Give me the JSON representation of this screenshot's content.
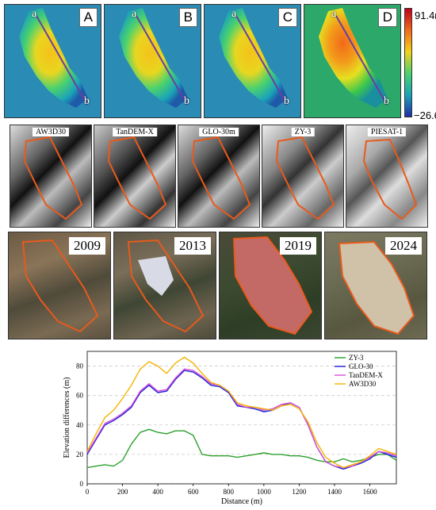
{
  "dem_panels": [
    {
      "tag": "A",
      "point_a": "a",
      "point_b": "b"
    },
    {
      "tag": "B",
      "point_a": "a",
      "point_b": "b"
    },
    {
      "tag": "C",
      "point_a": "a",
      "point_b": "b"
    },
    {
      "tag": "D",
      "point_a": "a",
      "point_b": "b"
    }
  ],
  "colorbar": {
    "max": "91.4m",
    "min": "−26.6m"
  },
  "hillshade_panels": [
    "AW3D30",
    "TanDEM-X",
    "GLO-30m",
    "ZY-3",
    "PIESAT-1"
  ],
  "satellite_panels": [
    "2009",
    "2013",
    "2019",
    "2024"
  ],
  "chart_data": {
    "type": "line",
    "xlabel": "Distance (m)",
    "ylabel": "Elevation differences (m)",
    "xlim": [
      0,
      1750
    ],
    "ylim": [
      0,
      90
    ],
    "xticks": [
      "0",
      "200",
      "400",
      "600",
      "800",
      "1000",
      "1200",
      "1400",
      "1600"
    ],
    "yticks": [
      "0",
      "20",
      "40",
      "60",
      "80"
    ],
    "grid": true,
    "legend_position": "top-right",
    "x": [
      0,
      50,
      100,
      150,
      200,
      250,
      300,
      350,
      400,
      450,
      500,
      550,
      600,
      650,
      700,
      750,
      800,
      850,
      900,
      950,
      1000,
      1050,
      1100,
      1150,
      1200,
      1250,
      1300,
      1350,
      1400,
      1450,
      1500,
      1550,
      1600,
      1650,
      1700,
      1750
    ],
    "series": [
      {
        "name": "ZY-3",
        "color": "#2ca02c",
        "values": [
          11,
          12,
          13,
          12,
          16,
          27,
          35,
          37,
          35,
          34,
          36,
          36,
          33,
          20,
          19,
          19,
          19,
          18,
          19,
          20,
          21,
          20,
          20,
          19,
          19,
          18,
          16,
          15,
          15,
          17,
          15,
          16,
          18,
          20,
          20,
          16
        ]
      },
      {
        "name": "GLO-30",
        "color": "#1f1fd6",
        "values": [
          20,
          30,
          40,
          43,
          47,
          52,
          62,
          67,
          62,
          63,
          71,
          77,
          76,
          72,
          67,
          66,
          62,
          53,
          52,
          51,
          49,
          50,
          53,
          55,
          52,
          40,
          25,
          15,
          12,
          10,
          12,
          14,
          17,
          22,
          20,
          18
        ]
      },
      {
        "name": "TanDEM-X",
        "color": "#d64fd6",
        "values": [
          21,
          31,
          41,
          44,
          48,
          53,
          63,
          68,
          63,
          64,
          72,
          78,
          77,
          73,
          68,
          67,
          63,
          54,
          52,
          52,
          50,
          51,
          54,
          55,
          52,
          40,
          25,
          15,
          12,
          11,
          12,
          15,
          18,
          22,
          21,
          19
        ]
      },
      {
        "name": "AW3D30",
        "color": "#f4b400",
        "values": [
          22,
          34,
          45,
          50,
          58,
          67,
          78,
          83,
          80,
          75,
          82,
          86,
          82,
          75,
          69,
          67,
          63,
          55,
          53,
          52,
          51,
          50,
          53,
          54,
          51,
          42,
          28,
          18,
          14,
          11,
          13,
          15,
          19,
          24,
          22,
          20
        ]
      }
    ]
  }
}
